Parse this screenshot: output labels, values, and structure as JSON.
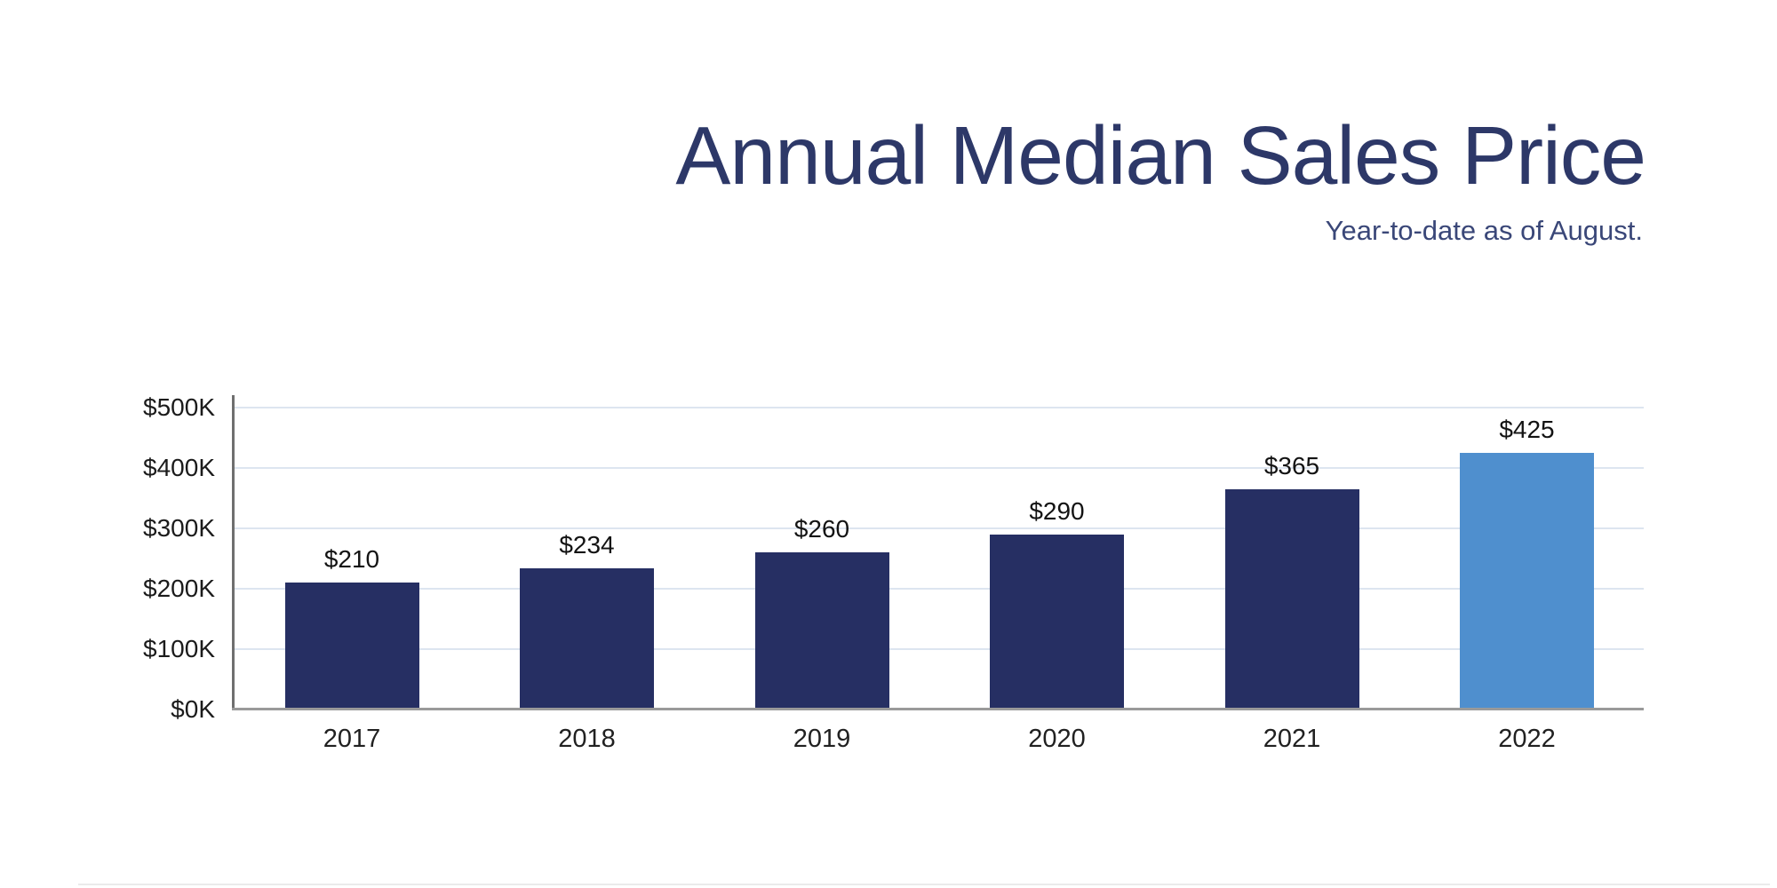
{
  "header": {
    "title": "Annual Median Sales Price",
    "subtitle": "Year-to-date as of August."
  },
  "chart_data": {
    "type": "bar",
    "title": "Annual Median Sales Price",
    "subtitle": "Year-to-date as of August.",
    "categories": [
      "2017",
      "2018",
      "2019",
      "2020",
      "2021",
      "2022"
    ],
    "values": [
      210,
      234,
      260,
      290,
      365,
      425
    ],
    "value_labels": [
      "$210",
      "$234",
      "$260",
      "$290",
      "$365",
      "$425"
    ],
    "units": "USD thousands",
    "xlabel": "",
    "ylabel": "",
    "ylim": [
      0,
      500
    ],
    "ytick_interval": 100,
    "ytick_labels": [
      "$0K",
      "$100K",
      "$200K",
      "$300K",
      "$400K",
      "$500K"
    ],
    "grid": "horizontal",
    "legend": "none",
    "bar_colors": [
      "#262f63",
      "#262f63",
      "#262f63",
      "#262f63",
      "#262f63",
      "#4f8fce"
    ],
    "highlight_category": "2022"
  },
  "colors": {
    "title_text": "#2d3868",
    "subtitle_text": "#3a4778",
    "bar_default": "#262f63",
    "bar_highlight": "#4f8fce",
    "gridline": "#dde5f0",
    "y_axis_line": "#6f6f6f",
    "x_axis_line": "#9a9a9a",
    "axis_tick_text": "#1b1b1b",
    "value_label_text": "#131313",
    "year_label_text": "#212121"
  }
}
